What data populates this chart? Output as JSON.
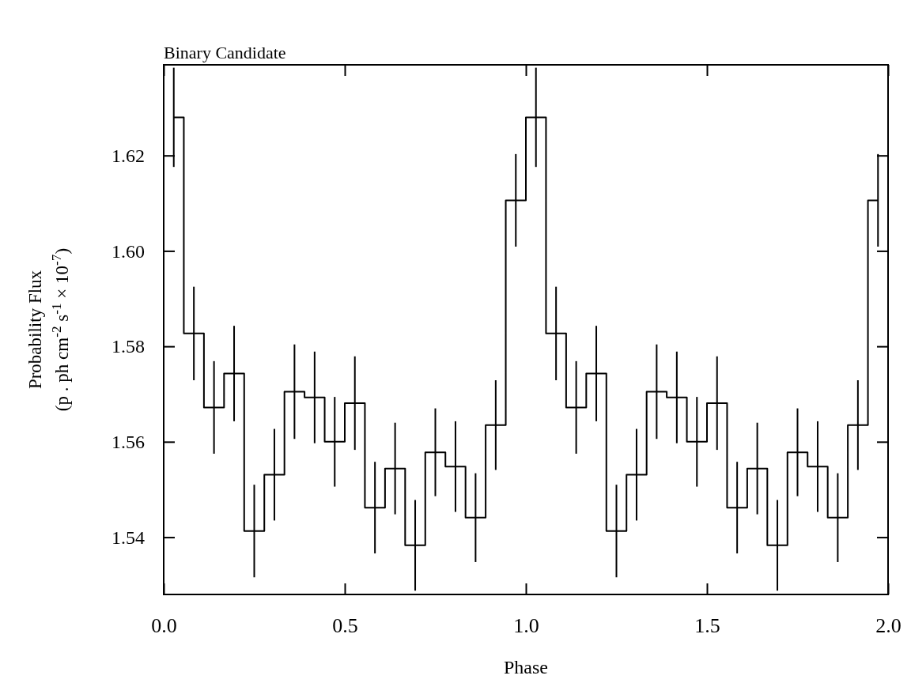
{
  "chart_data": {
    "type": "step",
    "title": "Binary Candidate",
    "xlabel": "Phase",
    "ylabel": "Probability Flux\n(p . ph cm$^{-2}$ s$^{-1}$ × 10$^{-7}$)",
    "x": [
      0.0278,
      0.0833,
      0.1389,
      0.1944,
      0.25,
      0.3056,
      0.3611,
      0.4167,
      0.4722,
      0.5278,
      0.5833,
      0.6389,
      0.6944,
      0.75,
      0.8056,
      0.8611,
      0.9167,
      0.9722,
      1.0278,
      1.0833,
      1.1389,
      1.1944,
      1.25,
      1.3056,
      1.3611,
      1.4167,
      1.4722,
      1.5278,
      1.5833,
      1.6389,
      1.6944,
      1.75,
      1.8056,
      1.8611,
      1.9167,
      1.9722
    ],
    "values": [
      1.628,
      1.5827,
      1.5672,
      1.5743,
      1.5413,
      1.5531,
      1.5705,
      1.5693,
      1.56,
      1.5681,
      1.5462,
      1.5544,
      1.5383,
      1.5578,
      1.5548,
      1.5441,
      1.5635,
      1.6106,
      1.628,
      1.5827,
      1.5672,
      1.5743,
      1.5413,
      1.5531,
      1.5705,
      1.5693,
      1.56,
      1.5681,
      1.5462,
      1.5544,
      1.5383,
      1.5578,
      1.5548,
      1.5441,
      1.5635,
      1.6106
    ],
    "errors": [
      0.0104,
      0.0098,
      0.0097,
      0.01,
      0.0097,
      0.0096,
      0.0099,
      0.0096,
      0.0094,
      0.0098,
      0.0096,
      0.0096,
      0.0095,
      0.0092,
      0.0095,
      0.0093,
      0.0094,
      0.0097,
      0.0104,
      0.0098,
      0.0097,
      0.01,
      0.0097,
      0.0096,
      0.0099,
      0.0096,
      0.0094,
      0.0098,
      0.0096,
      0.0096,
      0.0095,
      0.0092,
      0.0095,
      0.0093,
      0.0094,
      0.0097
    ],
    "color": "#000000",
    "xlim": [
      0,
      2
    ],
    "ylim": [
      1.528,
      1.639
    ],
    "xticks": [
      {
        "value": 0,
        "label": "0.0"
      },
      0.5,
      {
        "value": 1,
        "label": "1.0"
      },
      1.5,
      {
        "value": 2,
        "label": "2.0"
      }
    ],
    "yticks": [
      1.54,
      1.56,
      1.58,
      {
        "value": 1.6,
        "label": "1.60"
      },
      1.62
    ]
  }
}
